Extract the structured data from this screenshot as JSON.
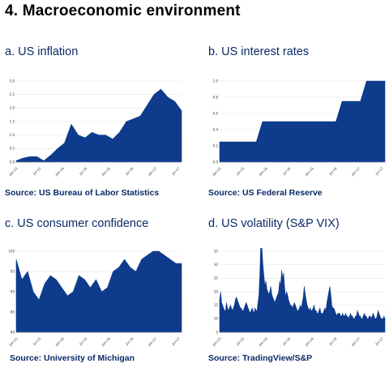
{
  "page_title": "4. Macroeconomic environment",
  "panels": [
    {
      "title": "a. US inflation",
      "source": "Source: US Bureau of Labor Statistics"
    },
    {
      "title": "b. US interest rates",
      "source": "Source: US Federal Reserve"
    },
    {
      "title": "c. US consumer confidence",
      "source": "Source: University of Michigan"
    },
    {
      "title": "d. US volatility (S&P VIX)",
      "source": "Source: TradingView/S&P"
    }
  ],
  "chart_data": [
    {
      "type": "area",
      "title": "a. US inflation",
      "color": "#0e3b8c",
      "ylim": [
        0,
        3.0
      ],
      "yticks": [
        "3.0",
        "2.5",
        "2.0",
        "1.5",
        "1.0",
        "0.5",
        "0.0"
      ],
      "xticks": [
        "Jan-15",
        "Jul-15",
        "Jan-16",
        "Jul-16",
        "Jan-16",
        "Jul-16",
        "Jan-17",
        "Jul-17"
      ],
      "values": [
        0.05,
        0.15,
        0.2,
        0.2,
        0.05,
        0.25,
        0.5,
        0.7,
        1.4,
        1.0,
        0.9,
        1.1,
        1.0,
        1.0,
        0.85,
        1.1,
        1.5,
        1.6,
        1.7,
        2.1,
        2.5,
        2.7,
        2.4,
        2.25,
        1.9
      ]
    },
    {
      "type": "area",
      "title": "b. US interest rates",
      "color": "#0e3b8c",
      "ylim": [
        0,
        1.0
      ],
      "yticks": [
        "1.0",
        "0.8",
        "0.6",
        "0.4",
        "0.2",
        "0.0"
      ],
      "xticks": [
        "Jan-15",
        "Jul-15",
        "Jan-16",
        "Jul-16",
        "Jan-16",
        "Jul-16",
        "Jan-17",
        "Jul-17"
      ],
      "values": [
        0.25,
        0.25,
        0.25,
        0.25,
        0.25,
        0.25,
        0.25,
        0.5,
        0.5,
        0.5,
        0.5,
        0.5,
        0.5,
        0.5,
        0.5,
        0.5,
        0.5,
        0.5,
        0.5,
        0.5,
        0.75,
        0.75,
        0.75,
        0.75,
        1.0,
        1.0,
        1.0,
        1.0
      ]
    },
    {
      "type": "area",
      "title": "c. US consumer confidence",
      "color": "#0e3b8c",
      "ylim": [
        80,
        100
      ],
      "yticks": [
        "100",
        "95",
        "90",
        "85",
        "80"
      ],
      "xticks": [
        "Jan-15",
        "Jul-15",
        "Jan-16",
        "Jul-16",
        "Jan-16",
        "Jul-16",
        "Jan-17",
        "Jul-17"
      ],
      "values": [
        98,
        93,
        95,
        90,
        88,
        92,
        94,
        93,
        91,
        89,
        90,
        94,
        93,
        91,
        93,
        90,
        91,
        95,
        96,
        98,
        96,
        95,
        98,
        99,
        100,
        100,
        99,
        98,
        97,
        97
      ]
    },
    {
      "type": "area",
      "title": "d. US volatility (S&P VIX)",
      "color": "#0e3b8c",
      "ylim": [
        5,
        35
      ],
      "yticks": [
        "35",
        "30",
        "25",
        "20",
        "15",
        "10",
        "5"
      ],
      "xticks": [
        "Jan-15",
        "Jul-15",
        "Jan-16",
        "Jul-16",
        "Jan-16",
        "Jul-16",
        "Jan-17",
        "Jul-17"
      ],
      "values": [
        17,
        20,
        16,
        15,
        14,
        13,
        13,
        16,
        14,
        13,
        14,
        15,
        14,
        13,
        14,
        15,
        17,
        18,
        17,
        16,
        15,
        14,
        14,
        13,
        13,
        14,
        15,
        16,
        15,
        14,
        13,
        12,
        13,
        14,
        13,
        12,
        14,
        13,
        13,
        16,
        19,
        28,
        40,
        36,
        30,
        26,
        22,
        24,
        21,
        20,
        19,
        20,
        22,
        19,
        18,
        17,
        16,
        17,
        18,
        19,
        20,
        24,
        22,
        28,
        25,
        27,
        22,
        18,
        20,
        19,
        17,
        16,
        15,
        15,
        14,
        15,
        16,
        15,
        14,
        13,
        13,
        14,
        15,
        14,
        16,
        18,
        22,
        19,
        17,
        15,
        14,
        13,
        14,
        13,
        13,
        14,
        15,
        13,
        13,
        12,
        12,
        13,
        14,
        12,
        12,
        12,
        13,
        14,
        13,
        16,
        18,
        20,
        22,
        19,
        15,
        14,
        14,
        13,
        12,
        11,
        12,
        12,
        12,
        11,
        11,
        12,
        11,
        11,
        12,
        11,
        11,
        10,
        11,
        12,
        11,
        11,
        10,
        10,
        11,
        11,
        13,
        12,
        11,
        11,
        10,
        10,
        11,
        12,
        11,
        11,
        10,
        10,
        11,
        11,
        10,
        11,
        12,
        11,
        10,
        10,
        11,
        13,
        12,
        11,
        10,
        10,
        10,
        11,
        10
      ]
    }
  ]
}
